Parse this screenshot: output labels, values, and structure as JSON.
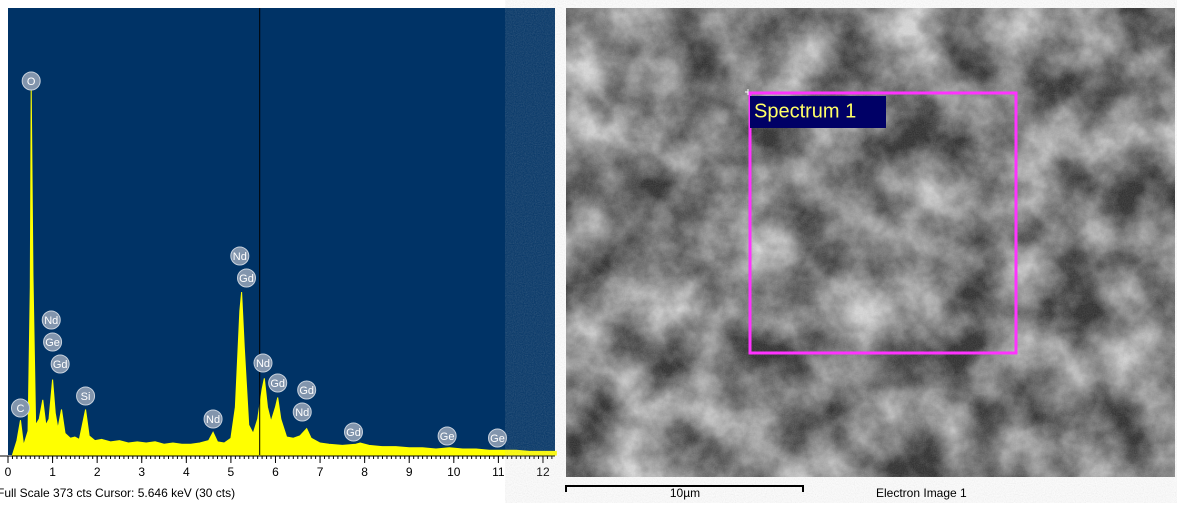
{
  "chart_data": {
    "type": "spectrum",
    "color": "#ffff00",
    "background": "#003366",
    "x": [
      0.1,
      0.2,
      0.28,
      0.35,
      0.45,
      0.5,
      0.52,
      0.56,
      0.62,
      0.7,
      0.78,
      0.85,
      0.92,
      1.0,
      1.06,
      1.12,
      1.2,
      1.28,
      1.4,
      1.5,
      1.6,
      1.74,
      1.82,
      1.95,
      2.1,
      2.3,
      2.5,
      2.7,
      2.9,
      3.1,
      3.3,
      3.5,
      3.7,
      3.9,
      4.1,
      4.3,
      4.5,
      4.6,
      4.7,
      4.85,
      5.0,
      5.1,
      5.2,
      5.24,
      5.3,
      5.4,
      5.5,
      5.6,
      5.7,
      5.75,
      5.82,
      5.9,
      6.0,
      6.05,
      6.12,
      6.25,
      6.4,
      6.55,
      6.7,
      6.8,
      7.0,
      7.2,
      7.5,
      7.8,
      7.9,
      8.1,
      8.4,
      8.7,
      9.0,
      9.3,
      9.6,
      9.9,
      10.2,
      10.5,
      10.8,
      11.1,
      11.4,
      11.7,
      12.0,
      12.3
    ],
    "values": [
      0,
      12,
      29,
      8,
      20,
      140,
      309,
      150,
      25,
      30,
      46,
      25,
      30,
      63,
      35,
      22,
      38,
      18,
      14,
      15,
      13,
      38,
      16,
      12,
      13,
      11,
      12,
      10,
      11,
      10,
      11,
      9,
      10,
      9,
      9,
      10,
      12,
      19,
      11,
      10,
      14,
      40,
      120,
      136,
      90,
      25,
      18,
      30,
      55,
      64,
      40,
      28,
      40,
      48,
      30,
      15,
      14,
      16,
      22,
      14,
      10,
      9,
      8,
      9,
      10,
      8,
      7,
      7,
      6,
      6,
      5,
      6,
      5,
      5,
      4,
      4,
      4,
      3,
      3,
      3
    ],
    "xlim": [
      0,
      12.27
    ],
    "ylim": [
      0,
      373
    ],
    "xticks": [
      0,
      1,
      2,
      3,
      4,
      5,
      6,
      7,
      8,
      9,
      10,
      11,
      12
    ],
    "cursor": 5.646,
    "annotations": [
      {
        "text": "O",
        "x": 0.52
      },
      {
        "text": "C",
        "x": 0.28
      },
      {
        "text": "Nd",
        "x": 0.97
      },
      {
        "text": "Ge",
        "x": 1.0
      },
      {
        "text": "Gd",
        "x": 1.17
      },
      {
        "text": "Si",
        "x": 1.74
      },
      {
        "text": "Nd",
        "x": 4.6
      },
      {
        "text": "Nd",
        "x": 5.2
      },
      {
        "text": "Gd",
        "x": 5.35
      },
      {
        "text": "Nd",
        "x": 5.72
      },
      {
        "text": "Gd",
        "x": 6.05
      },
      {
        "text": "Gd",
        "x": 6.7
      },
      {
        "text": "Nd",
        "x": 6.6
      },
      {
        "text": "Gd",
        "x": 7.75
      },
      {
        "text": "Ge",
        "x": 9.85
      },
      {
        "text": "Ge",
        "x": 10.98
      }
    ],
    "status": "Full Scale 373 cts  Cursor: 5.646 keV (30 cts)"
  },
  "image": {
    "region_label": "Spectrum 1",
    "scale_bar": "10µm",
    "caption": "Electron Image 1"
  }
}
